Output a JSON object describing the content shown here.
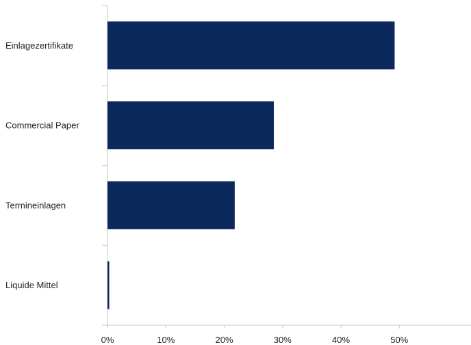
{
  "chart_data": {
    "type": "bar",
    "orientation": "horizontal",
    "categories": [
      "Einlagezertifikate",
      "Commercial Paper",
      "Termineinlagen",
      "Liquide Mittel"
    ],
    "values": [
      49.2,
      28.5,
      21.8,
      0.3
    ],
    "unit": "%",
    "xlim": [
      0,
      59
    ],
    "xticks": [
      "0%",
      "10%",
      "20%",
      "30%",
      "40%",
      "50%"
    ],
    "xtick_values": [
      0,
      10,
      20,
      30,
      40,
      50
    ],
    "grid": false,
    "legend": "none",
    "title": "",
    "xlabel": "",
    "ylabel": ""
  },
  "colors": {
    "bar": "#0b2a5b",
    "axis": "#c9c9c9",
    "text": "#222222"
  }
}
